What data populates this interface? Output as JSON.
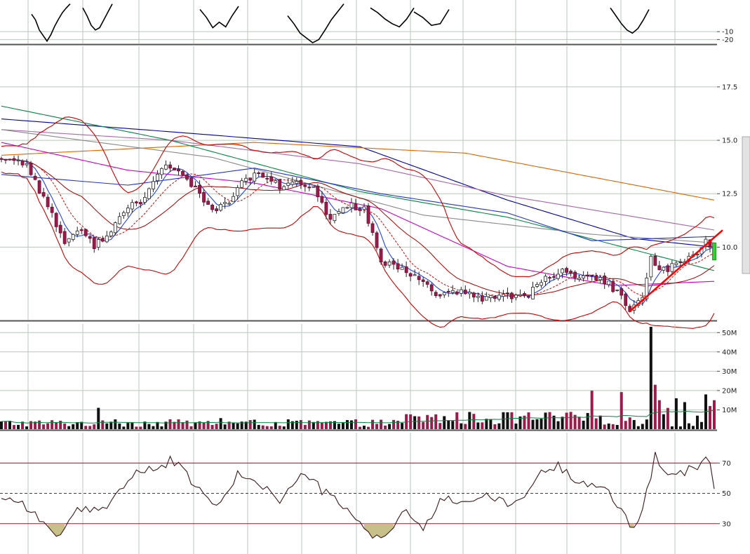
{
  "chart_data": [
    {
      "type": "line",
      "panel": "oscillator-top",
      "y_ticks": [
        -10,
        -20
      ],
      "y_tick_labels": [
        "-10",
        "-20"
      ],
      "ylim": [
        -25,
        30
      ],
      "series": [
        {
          "values": [
            12,
            5,
            -8,
            -15,
            -22,
            -14,
            -3,
            6,
            14,
            20,
            25
          ]
        },
        {
          "values": [
            20,
            10,
            -2,
            -8,
            -5,
            5,
            15,
            25
          ]
        },
        {
          "values": [
            18,
            8,
            -5,
            2,
            -4,
            10,
            22
          ]
        },
        {
          "values": [
            10,
            0,
            -12,
            -18,
            -24,
            -20,
            -8,
            5,
            15,
            25
          ]
        },
        {
          "values": [
            20,
            14,
            6,
            0,
            -4,
            6,
            20
          ]
        },
        {
          "values": [
            15,
            8,
            -2,
            0,
            18
          ]
        },
        {
          "values": [
            20,
            10,
            0,
            -8,
            -12,
            -6,
            5,
            18
          ]
        }
      ],
      "grid": true
    },
    {
      "type": "candlestick",
      "panel": "price",
      "y_ticks": [
        10.0,
        12.5,
        15.0,
        17.5
      ],
      "y_tick_labels": [
        "10.0",
        "12.5",
        "15.0",
        "17.5"
      ],
      "ylim": [
        6.6,
        19.4
      ],
      "ohlc_count": 170,
      "close_path": [
        [
          0,
          14.2
        ],
        [
          6,
          13.9
        ],
        [
          12,
          11.5
        ],
        [
          15,
          10.2
        ],
        [
          18,
          10.8
        ],
        [
          22,
          10.1
        ],
        [
          25,
          10.6
        ],
        [
          30,
          11.8
        ],
        [
          34,
          12.3
        ],
        [
          38,
          13.8
        ],
        [
          42,
          13.5
        ],
        [
          46,
          12.8
        ],
        [
          50,
          11.6
        ],
        [
          54,
          12.2
        ],
        [
          58,
          13.2
        ],
        [
          62,
          13.4
        ],
        [
          66,
          12.8
        ],
        [
          70,
          13.0
        ],
        [
          74,
          12.7
        ],
        [
          78,
          11.3
        ],
        [
          82,
          12.0
        ],
        [
          86,
          11.8
        ],
        [
          90,
          9.3
        ],
        [
          95,
          8.9
        ],
        [
          100,
          8.4
        ],
        [
          104,
          7.7
        ],
        [
          108,
          7.9
        ],
        [
          114,
          7.6
        ],
        [
          120,
          7.8
        ],
        [
          124,
          7.6
        ],
        [
          130,
          8.7
        ],
        [
          134,
          8.9
        ],
        [
          138,
          8.5
        ],
        [
          142,
          8.6
        ],
        [
          146,
          7.9
        ],
        [
          149,
          7.0
        ],
        [
          152,
          7.6
        ],
        [
          154,
          9.5
        ],
        [
          157,
          8.9
        ],
        [
          160,
          9.2
        ],
        [
          164,
          9.6
        ],
        [
          167,
          10.3
        ],
        [
          169,
          9.9
        ]
      ],
      "moving_averages": [
        {
          "color": "#0000aa",
          "values": [
            [
              0,
              16.0
            ],
            [
              40,
              15.4
            ],
            [
              85,
              14.7
            ],
            [
              120,
              12.2
            ],
            [
              150,
              10.4
            ],
            [
              169,
              10.0
            ]
          ]
        },
        {
          "color": "#dd6600",
          "values": [
            [
              0,
              14.3
            ],
            [
              60,
              14.9
            ],
            [
              110,
              14.4
            ],
            [
              169,
              12.2
            ]
          ]
        },
        {
          "color": "#aa66aa",
          "values": [
            [
              0,
              15.5
            ],
            [
              40,
              15.0
            ],
            [
              85,
              13.9
            ],
            [
              120,
              12.4
            ],
            [
              169,
              10.8
            ]
          ]
        },
        {
          "color": "#008844",
          "values": [
            [
              0,
              16.6
            ],
            [
              40,
              15.0
            ],
            [
              85,
              12.6
            ],
            [
              120,
              11.4
            ],
            [
              169,
              8.9
            ]
          ]
        },
        {
          "color": "#888888",
          "values": [
            [
              0,
              15.5
            ],
            [
              50,
              14.2
            ],
            [
              100,
              11.5
            ],
            [
              140,
              10.6
            ],
            [
              169,
              10.2
            ]
          ]
        },
        {
          "color": "#2233cc",
          "values": [
            [
              0,
              13.4
            ],
            [
              30,
              12.9
            ],
            [
              60,
              13.7
            ],
            [
              90,
              12.5
            ],
            [
              120,
              11.6
            ],
            [
              140,
              10.3
            ],
            [
              169,
              10.5
            ]
          ]
        },
        {
          "color": "#cc00cc",
          "values": [
            [
              0,
              14.9
            ],
            [
              30,
              13.6
            ],
            [
              60,
              13.0
            ],
            [
              90,
              11.8
            ],
            [
              120,
              9.1
            ],
            [
              145,
              8.2
            ],
            [
              169,
              8.4
            ]
          ]
        }
      ],
      "bollinger": {
        "color": "#cc0000"
      },
      "trendline": {
        "color": "#ff0000",
        "from": [
          149,
          7.0
        ],
        "to": [
          169,
          10.5
        ]
      },
      "grid": true
    },
    {
      "type": "bar",
      "panel": "volume",
      "y_ticks": [
        10,
        20,
        30,
        40,
        50
      ],
      "y_tick_labels": [
        "10M",
        "20M",
        "30M",
        "40M",
        "50M"
      ],
      "ylim": [
        0,
        53
      ],
      "volume_avg": 3,
      "spikes": [
        [
          154,
          53
        ],
        [
          155,
          23
        ],
        [
          156,
          15
        ],
        [
          158,
          11
        ],
        [
          160,
          16
        ],
        [
          162,
          14
        ],
        [
          165,
          7
        ],
        [
          167,
          18
        ],
        [
          168,
          12
        ],
        [
          169,
          15
        ]
      ],
      "grid": true
    },
    {
      "type": "line",
      "panel": "rsi",
      "y_ticks": [
        30,
        50,
        70
      ],
      "y_tick_labels": [
        "30",
        "50",
        "70"
      ],
      "ylim": [
        10,
        90
      ],
      "reference_lines": [
        30,
        50,
        70
      ],
      "series": [
        {
          "values": [
            [
              0,
              48
            ],
            [
              5,
              44
            ],
            [
              10,
              30
            ],
            [
              14,
              22
            ],
            [
              18,
              38
            ],
            [
              24,
              40
            ],
            [
              28,
              52
            ],
            [
              32,
              64
            ],
            [
              38,
              66
            ],
            [
              40,
              73
            ],
            [
              44,
              62
            ],
            [
              48,
              48
            ],
            [
              52,
              42
            ],
            [
              56,
              62
            ],
            [
              60,
              60
            ],
            [
              66,
              45
            ],
            [
              72,
              64
            ],
            [
              76,
              52
            ],
            [
              80,
              44
            ],
            [
              84,
              32
            ],
            [
              88,
              22
            ],
            [
              92,
              24
            ],
            [
              96,
              40
            ],
            [
              100,
              24
            ],
            [
              104,
              46
            ],
            [
              110,
              45
            ],
            [
              116,
              48
            ],
            [
              120,
              42
            ],
            [
              124,
              48
            ],
            [
              128,
              64
            ],
            [
              132,
              68
            ],
            [
              136,
              60
            ],
            [
              140,
              56
            ],
            [
              144,
              50
            ],
            [
              148,
              35
            ],
            [
              150,
              26
            ],
            [
              153,
              50
            ],
            [
              155,
              75
            ],
            [
              158,
              60
            ],
            [
              162,
              64
            ],
            [
              166,
              70
            ],
            [
              168,
              72
            ],
            [
              169,
              52
            ]
          ]
        }
      ],
      "grid": true
    }
  ]
}
